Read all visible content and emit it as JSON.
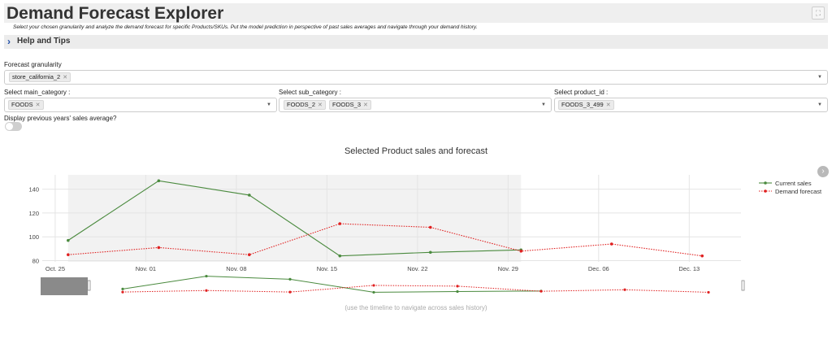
{
  "app": {
    "title": "Demand Forecast Explorer",
    "subtitle": "Select your chosen granularity and analyze the demand forecast for specific Products/SKUs. Put the model prediction in perspective of past sales averages and navigate through your demand history.",
    "help_label": "Help and Tips"
  },
  "filters": {
    "granularity": {
      "label": "Forecast granularity",
      "chips": [
        "store_california_2"
      ]
    },
    "main_category": {
      "label": "Select main_category :",
      "chips": [
        "FOODS"
      ]
    },
    "sub_category": {
      "label": "Select sub_category :",
      "chips": [
        "FOODS_2",
        "FOODS_3"
      ]
    },
    "product_id": {
      "label": "Select product_id :",
      "chips": [
        "FOODS_3_499"
      ]
    }
  },
  "toggle": {
    "label": "Display previous years' sales average?",
    "on": false
  },
  "timeline_hint": "(use the timeline to navigate across sales history)",
  "chart_data": {
    "type": "line",
    "title": "Selected Product sales and forecast",
    "xlabel": "",
    "ylabel": "",
    "x_ticks": [
      "Oct. 25",
      "Nov. 01",
      "Nov. 08",
      "Nov. 15",
      "Nov. 22",
      "Nov. 29",
      "Dec. 06",
      "Dec. 13"
    ],
    "y_ticks": [
      80,
      100,
      120,
      140
    ],
    "ylim": [
      79,
      152
    ],
    "xlim": [
      "2020-10-24",
      "2020-12-17"
    ],
    "shaded_range": [
      "2020-10-26",
      "2020-11-30"
    ],
    "legend_position": "top-right",
    "grid": true,
    "series": [
      {
        "name": "Current sales",
        "color": "#4a8a3e",
        "dash": "solid",
        "points": [
          {
            "x": "2020-10-26",
            "y": 97
          },
          {
            "x": "2020-11-02",
            "y": 147
          },
          {
            "x": "2020-11-09",
            "y": 135
          },
          {
            "x": "2020-11-16",
            "y": 84
          },
          {
            "x": "2020-11-23",
            "y": 87
          },
          {
            "x": "2020-11-30",
            "y": 89
          }
        ]
      },
      {
        "name": "Demand forecast",
        "color": "#e02020",
        "dash": "dotted",
        "points": [
          {
            "x": "2020-10-26",
            "y": 85
          },
          {
            "x": "2020-11-02",
            "y": 91
          },
          {
            "x": "2020-11-09",
            "y": 85
          },
          {
            "x": "2020-11-16",
            "y": 111
          },
          {
            "x": "2020-11-23",
            "y": 108
          },
          {
            "x": "2020-11-30",
            "y": 88
          },
          {
            "x": "2020-12-07",
            "y": 94
          },
          {
            "x": "2020-12-14",
            "y": 84
          }
        ]
      }
    ]
  }
}
